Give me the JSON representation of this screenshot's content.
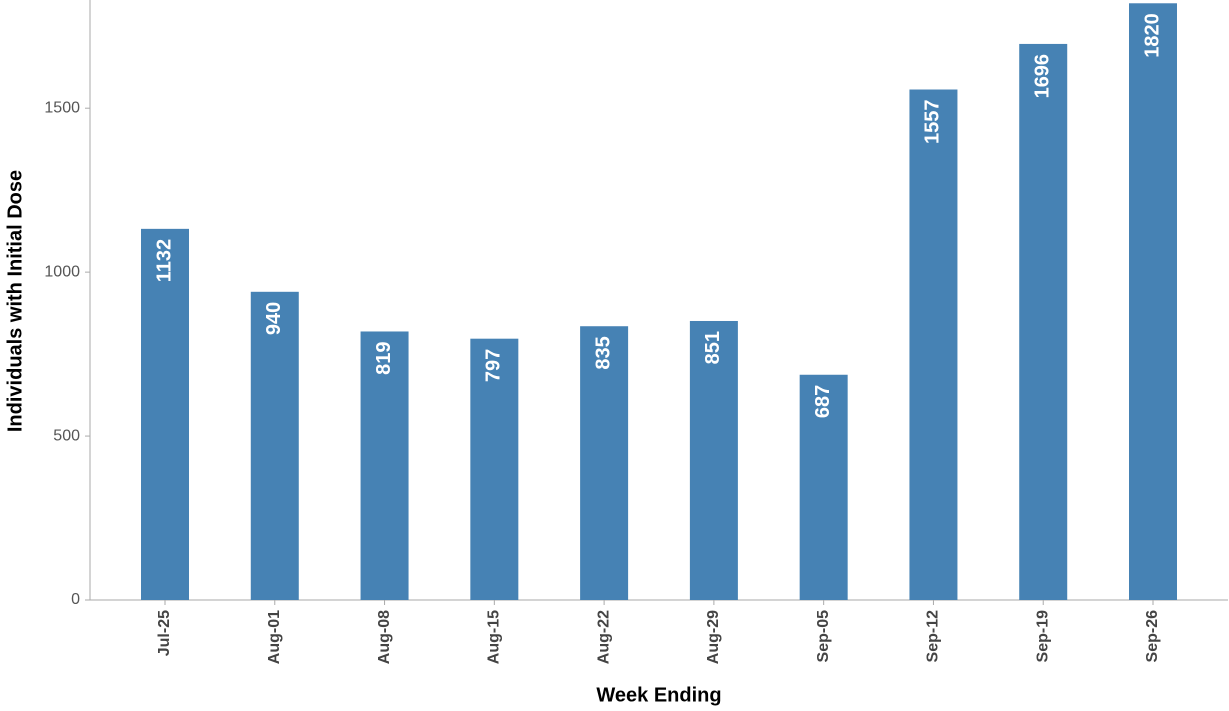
{
  "chart_data": {
    "type": "bar",
    "xlabel": "Week Ending",
    "ylabel": "Individuals with Initial Dose",
    "categories": [
      "Jul-25",
      "Aug-01",
      "Aug-08",
      "Aug-15",
      "Aug-22",
      "Aug-29",
      "Sep-05",
      "Sep-12",
      "Sep-19",
      "Sep-26"
    ],
    "values": [
      1132,
      940,
      819,
      797,
      835,
      851,
      687,
      1557,
      1696,
      1820
    ],
    "color": "#4682b4",
    "ylim": [
      0,
      1830
    ],
    "yticks": [
      0,
      500,
      1000,
      1500
    ],
    "grid": false
  }
}
